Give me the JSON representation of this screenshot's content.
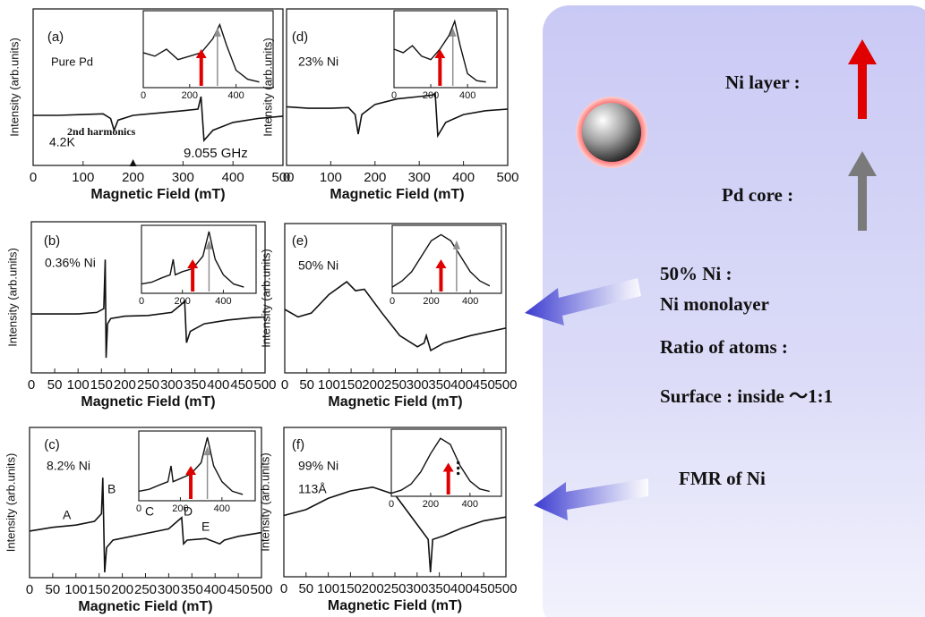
{
  "chart_data": [
    {
      "type": "line",
      "label": "(a)",
      "xlabel": "Magnetic Field (mT)",
      "ylabel": "Intensity (arb.units)",
      "notes": [
        "Pure Pd",
        "4.2K",
        "9.055 GHz",
        "2nd harmonics"
      ],
      "xlim": [
        0,
        500
      ],
      "xticks": [
        0,
        100,
        200,
        300,
        400,
        500
      ],
      "ylim": [
        -1,
        1
      ],
      "x": [
        0,
        50,
        100,
        140,
        155,
        162,
        170,
        200,
        250,
        300,
        330,
        336,
        342,
        360,
        400,
        450,
        500
      ],
      "values": [
        -0.36,
        -0.36,
        -0.35,
        -0.34,
        -0.4,
        -0.55,
        -0.42,
        -0.36,
        -0.33,
        -0.3,
        -0.28,
        -0.12,
        -0.68,
        -0.55,
        -0.45,
        -0.4,
        -0.37
      ],
      "inset": {
        "xlim": [
          0,
          560
        ],
        "xticks": [
          0,
          200,
          400
        ],
        "ylim": [
          0,
          1.1
        ],
        "x": [
          0,
          50,
          100,
          150,
          200,
          250,
          300,
          330,
          360,
          400,
          450,
          500
        ],
        "values": [
          0.5,
          0.45,
          0.55,
          0.4,
          0.45,
          0.5,
          0.7,
          0.9,
          0.6,
          0.25,
          0.12,
          0.08
        ],
        "markers": [
          {
            "x": 250,
            "color": "#e00000"
          },
          {
            "x": 320,
            "color": "#909090"
          }
        ]
      }
    },
    {
      "type": "line",
      "label": "(b)",
      "xlabel": "Magnetic Field (mT)",
      "ylabel": "Intensity (arb.units)",
      "notes": [
        "0.36% Ni"
      ],
      "xlim": [
        0,
        500
      ],
      "xticks": [
        0,
        50,
        100,
        150,
        200,
        250,
        300,
        350,
        400,
        450,
        500
      ],
      "ylim": [
        -1,
        1
      ],
      "x": [
        0,
        50,
        100,
        140,
        155,
        158,
        160,
        163,
        170,
        200,
        250,
        300,
        320,
        328,
        332,
        340,
        370,
        420,
        470,
        500
      ],
      "values": [
        -0.22,
        -0.22,
        -0.22,
        -0.2,
        -0.15,
        0.5,
        -0.8,
        -0.35,
        -0.28,
        -0.25,
        -0.24,
        -0.2,
        -0.1,
        -0.05,
        -0.6,
        -0.45,
        -0.35,
        -0.3,
        -0.27,
        -0.26
      ],
      "inset": {
        "xlim": [
          0,
          560
        ],
        "xticks": [
          0,
          200,
          400
        ],
        "ylim": [
          0,
          1.1
        ],
        "x": [
          0,
          50,
          100,
          140,
          155,
          165,
          200,
          250,
          300,
          330,
          360,
          400,
          450,
          500
        ],
        "values": [
          0.15,
          0.18,
          0.25,
          0.3,
          0.55,
          0.3,
          0.35,
          0.4,
          0.6,
          1.0,
          0.55,
          0.3,
          0.15,
          0.1
        ],
        "markers": [
          {
            "x": 250,
            "color": "#e00000"
          },
          {
            "x": 330,
            "color": "#909090"
          }
        ]
      }
    },
    {
      "type": "line",
      "label": "(c)",
      "xlabel": "Magnetic Field (mT)",
      "ylabel": "Intensity (arb.units)",
      "notes": [
        "8.2% Ni",
        "A",
        "B",
        "C",
        "D",
        "E"
      ],
      "xlim": [
        0,
        500
      ],
      "xticks": [
        0,
        50,
        100,
        150,
        200,
        250,
        300,
        350,
        400,
        450,
        500
      ],
      "ylim": [
        -1,
        1
      ],
      "x": [
        0,
        50,
        100,
        140,
        155,
        158,
        162,
        166,
        180,
        220,
        260,
        300,
        328,
        332,
        340,
        380,
        410,
        420,
        450,
        500
      ],
      "values": [
        -0.38,
        -0.33,
        -0.3,
        -0.25,
        -0.15,
        0.33,
        -0.93,
        -0.6,
        -0.5,
        -0.45,
        -0.4,
        -0.35,
        -0.2,
        -0.55,
        -0.5,
        -0.48,
        -0.55,
        -0.5,
        -0.45,
        -0.4
      ],
      "inset": {
        "xlim": [
          0,
          560
        ],
        "xticks": [
          0,
          200,
          400
        ],
        "ylim": [
          0,
          1.1
        ],
        "x": [
          0,
          50,
          100,
          140,
          155,
          165,
          200,
          250,
          300,
          330,
          360,
          400,
          450,
          500
        ],
        "values": [
          0.15,
          0.18,
          0.25,
          0.3,
          0.55,
          0.3,
          0.35,
          0.42,
          0.6,
          1.0,
          0.55,
          0.3,
          0.15,
          0.1
        ],
        "markers": [
          {
            "x": 250,
            "color": "#e00000"
          },
          {
            "x": 330,
            "color": "#909090"
          }
        ]
      }
    },
    {
      "type": "line",
      "label": "(d)",
      "xlabel": "Magnetic Field (mT)",
      "ylabel": "Intensity (arb.units)",
      "notes": [
        "23% Ni"
      ],
      "xlim": [
        0,
        500
      ],
      "xticks": [
        0,
        100,
        200,
        300,
        400,
        500
      ],
      "ylim": [
        -1,
        1
      ],
      "x": [
        0,
        50,
        100,
        140,
        155,
        162,
        170,
        200,
        250,
        300,
        330,
        336,
        342,
        360,
        400,
        450,
        500
      ],
      "values": [
        -0.25,
        -0.27,
        -0.27,
        -0.26,
        -0.35,
        -0.6,
        -0.35,
        -0.22,
        -0.15,
        -0.12,
        -0.1,
        -0.08,
        -0.62,
        -0.45,
        -0.35,
        -0.3,
        -0.28
      ],
      "inset": {
        "xlim": [
          0,
          560
        ],
        "xticks": [
          0,
          200,
          400
        ],
        "ylim": [
          0,
          1.1
        ],
        "x": [
          0,
          50,
          100,
          150,
          200,
          250,
          300,
          330,
          360,
          400,
          450,
          500
        ],
        "values": [
          0.55,
          0.5,
          0.6,
          0.45,
          0.4,
          0.55,
          0.75,
          0.95,
          0.6,
          0.2,
          0.1,
          0.08
        ],
        "markers": [
          {
            "x": 250,
            "color": "#e00000"
          },
          {
            "x": 320,
            "color": "#909090"
          }
        ]
      }
    },
    {
      "type": "line",
      "label": "(e)",
      "xlabel": "Magnetic Field (mT)",
      "ylabel": "Intensity (arb.units)",
      "notes": [
        "50% Ni"
      ],
      "xlim": [
        0,
        500
      ],
      "xticks": [
        0,
        50,
        100,
        150,
        200,
        250,
        300,
        350,
        400,
        450,
        500
      ],
      "ylim": [
        -1,
        1
      ],
      "x": [
        0,
        30,
        60,
        100,
        140,
        160,
        180,
        220,
        260,
        300,
        315,
        320,
        330,
        360,
        420,
        500
      ],
      "values": [
        -0.15,
        -0.25,
        -0.2,
        0.05,
        0.22,
        0.1,
        0.12,
        -0.2,
        -0.5,
        -0.65,
        -0.6,
        -0.5,
        -0.7,
        -0.6,
        -0.5,
        -0.4
      ],
      "inset": {
        "xlim": [
          0,
          560
        ],
        "xticks": [
          0,
          200,
          400
        ],
        "ylim": [
          0,
          1.1
        ],
        "x": [
          0,
          50,
          100,
          150,
          200,
          250,
          300,
          350,
          400,
          450,
          500
        ],
        "values": [
          0.1,
          0.2,
          0.35,
          0.6,
          0.85,
          0.95,
          0.85,
          0.6,
          0.35,
          0.2,
          0.12
        ],
        "markers": [
          {
            "x": 250,
            "color": "#e00000"
          },
          {
            "x": 330,
            "color": "#909090"
          }
        ]
      }
    },
    {
      "type": "line",
      "label": "(f)",
      "xlabel": "Magnetic Field (mT)",
      "ylabel": "Intensity (arb.units)",
      "notes": [
        "99% Ni",
        "113Å"
      ],
      "xlim": [
        0,
        500
      ],
      "xticks": [
        0,
        50,
        100,
        150,
        200,
        250,
        300,
        350,
        400,
        450,
        500
      ],
      "ylim": [
        -1,
        1
      ],
      "x": [
        0,
        50,
        100,
        150,
        200,
        250,
        300,
        325,
        330,
        335,
        360,
        400,
        450,
        500
      ],
      "values": [
        -0.18,
        -0.1,
        0.05,
        0.15,
        0.2,
        0.1,
        -0.3,
        -0.5,
        -0.94,
        -0.5,
        -0.45,
        -0.35,
        -0.25,
        -0.2
      ],
      "inset": {
        "xlim": [
          0,
          560
        ],
        "xticks": [
          0,
          200,
          400
        ],
        "ylim": [
          0,
          1.1
        ],
        "x": [
          0,
          50,
          100,
          150,
          200,
          250,
          300,
          350,
          400,
          450,
          500
        ],
        "values": [
          0.05,
          0.1,
          0.2,
          0.4,
          0.7,
          0.95,
          0.85,
          0.5,
          0.25,
          0.12,
          0.08
        ],
        "markers": [
          {
            "x": 290,
            "color": "#e00000"
          }
        ]
      }
    }
  ],
  "annotations": {
    "ni_layer": "Ni layer :",
    "pd_core": "Pd core :",
    "ni_50": "50% Ni :",
    "monolayer": "Ni monolayer",
    "ratio": "Ratio of atoms :",
    "surface": "Surface : inside ～1:1",
    "fmr": "FMR of Ni"
  }
}
